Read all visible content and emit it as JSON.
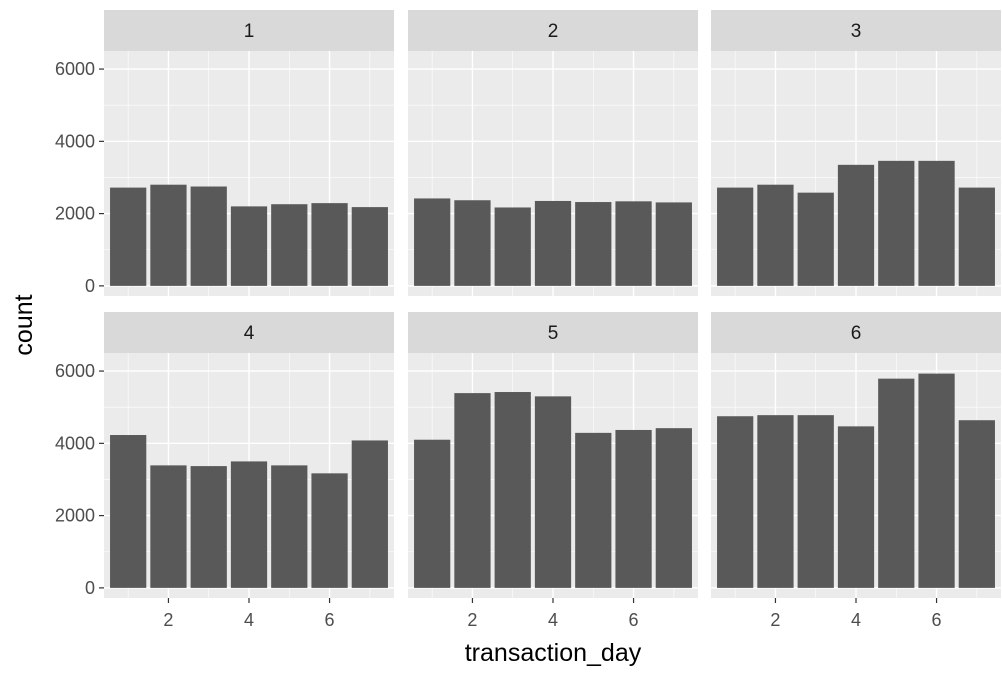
{
  "chart_data": {
    "type": "bar",
    "xlabel": "transaction_day",
    "ylabel": "count",
    "x": [
      1,
      2,
      3,
      4,
      5,
      6,
      7
    ],
    "x_ticks": [
      2,
      4,
      6
    ],
    "x_tick_labels": [
      "2",
      "4",
      "6"
    ],
    "ylim": [
      0,
      6500
    ],
    "y_ticks": [
      0,
      2000,
      4000,
      6000
    ],
    "y_tick_labels": [
      "0",
      "2000",
      "4000",
      "6000"
    ],
    "grid": true,
    "facet_layout": "2 rows x 3 columns",
    "panels": [
      {
        "label": "1",
        "values": [
          2720,
          2800,
          2750,
          2200,
          2260,
          2290,
          2180
        ]
      },
      {
        "label": "2",
        "values": [
          2420,
          2370,
          2170,
          2350,
          2320,
          2340,
          2310
        ]
      },
      {
        "label": "3",
        "values": [
          2720,
          2800,
          2580,
          3350,
          3460,
          3460,
          2720
        ]
      },
      {
        "label": "4",
        "values": [
          4230,
          3390,
          3370,
          3500,
          3390,
          3170,
          4080
        ]
      },
      {
        "label": "5",
        "values": [
          4100,
          5390,
          5420,
          5300,
          4290,
          4370,
          4420
        ]
      },
      {
        "label": "6",
        "values": [
          4750,
          4780,
          4780,
          4470,
          5790,
          5930,
          4640
        ]
      }
    ],
    "colors": {
      "bar": "#595959",
      "panel_background": "#ebebeb",
      "strip_background": "#d9d9d9",
      "gridline": "#ffffff"
    }
  }
}
